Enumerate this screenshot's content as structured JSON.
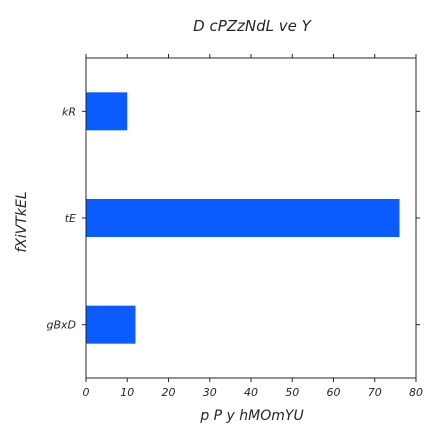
{
  "chart_data": {
    "type": "bar",
    "orientation": "horizontal",
    "title": "D cPZzNdL ve Y",
    "xlabel": "p P  y hMOmYU",
    "ylabel": "fXiVTkEL",
    "categories": [
      "kR",
      "tE",
      "gBxD"
    ],
    "values": [
      10,
      76,
      12
    ],
    "xlim": [
      0,
      80
    ],
    "xticks": [
      0,
      10,
      20,
      30,
      40,
      50,
      60,
      70,
      80
    ],
    "grid": false,
    "colors": {
      "bar": "#0a5cff",
      "axis": "#262626",
      "text": "#262626"
    }
  }
}
